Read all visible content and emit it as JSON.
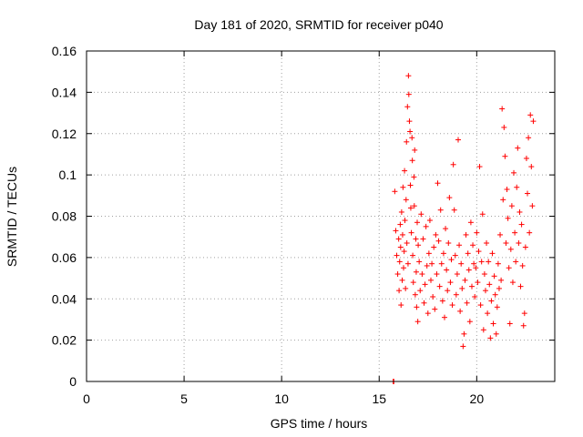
{
  "colors": {
    "series": "#ff0000",
    "axis": "#000000",
    "grid": "#a0a0a0",
    "background": "#ffffff"
  },
  "chart_data": {
    "type": "scatter",
    "title": "Day 181 of 2020, SRMTID for receiver p040",
    "xlabel": "GPS time / hours",
    "ylabel": "SRMTID / TECUs",
    "xlim": [
      0,
      24
    ],
    "ylim": [
      0,
      0.16
    ],
    "x_ticks": [
      0,
      5,
      10,
      15,
      20
    ],
    "x_tick_labels": [
      "0",
      "5",
      "10",
      "15",
      "20"
    ],
    "y_ticks": [
      0,
      0.02,
      0.04,
      0.06,
      0.08,
      0.1,
      0.12,
      0.14,
      0.16
    ],
    "y_tick_labels": [
      "0",
      "0.02",
      "0.04",
      "0.06",
      "0.08",
      "0.1",
      "0.12",
      "0.14",
      "0.16"
    ],
    "grid": true,
    "marker": "plus",
    "series": [
      {
        "name": "SRMTID",
        "points": [
          [
            15.72,
            0.0
          ],
          [
            15.75,
            0.0
          ],
          [
            15.8,
            0.092
          ],
          [
            15.85,
            0.073
          ],
          [
            15.9,
            0.061
          ],
          [
            15.95,
            0.052
          ],
          [
            16.0,
            0.069
          ],
          [
            16.02,
            0.044
          ],
          [
            16.05,
            0.058
          ],
          [
            16.08,
            0.076
          ],
          [
            16.1,
            0.065
          ],
          [
            16.12,
            0.037
          ],
          [
            16.15,
            0.082
          ],
          [
            16.18,
            0.049
          ],
          [
            16.2,
            0.071
          ],
          [
            16.22,
            0.094
          ],
          [
            16.25,
            0.055
          ],
          [
            16.28,
            0.063
          ],
          [
            16.3,
            0.102
          ],
          [
            16.32,
            0.078
          ],
          [
            16.35,
            0.045
          ],
          [
            16.38,
            0.088
          ],
          [
            16.4,
            0.116
          ],
          [
            16.42,
            0.067
          ],
          [
            16.45,
            0.133
          ],
          [
            16.48,
            0.057
          ],
          [
            16.5,
            0.148
          ],
          [
            16.52,
            0.139
          ],
          [
            16.55,
            0.126
          ],
          [
            16.58,
            0.121
          ],
          [
            16.6,
            0.095
          ],
          [
            16.62,
            0.084
          ],
          [
            16.65,
            0.072
          ],
          [
            16.68,
            0.118
          ],
          [
            16.7,
            0.107
          ],
          [
            16.72,
            0.061
          ],
          [
            16.75,
            0.048
          ],
          [
            16.78,
            0.099
          ],
          [
            16.8,
            0.085
          ],
          [
            16.82,
            0.112
          ],
          [
            16.85,
            0.042
          ],
          [
            16.88,
            0.069
          ],
          [
            16.9,
            0.053
          ],
          [
            16.92,
            0.036
          ],
          [
            16.95,
            0.077
          ],
          [
            16.98,
            0.029
          ],
          [
            17.0,
            0.066
          ],
          [
            17.05,
            0.058
          ],
          [
            17.1,
            0.044
          ],
          [
            17.15,
            0.081
          ],
          [
            17.2,
            0.052
          ],
          [
            17.25,
            0.069
          ],
          [
            17.3,
            0.038
          ],
          [
            17.35,
            0.047
          ],
          [
            17.4,
            0.075
          ],
          [
            17.45,
            0.056
          ],
          [
            17.5,
            0.033
          ],
          [
            17.55,
            0.062
          ],
          [
            17.6,
            0.078
          ],
          [
            17.65,
            0.049
          ],
          [
            17.7,
            0.057
          ],
          [
            17.75,
            0.041
          ],
          [
            17.8,
            0.065
          ],
          [
            17.85,
            0.035
          ],
          [
            17.9,
            0.071
          ],
          [
            17.95,
            0.052
          ],
          [
            18.0,
            0.096
          ],
          [
            18.05,
            0.068
          ],
          [
            18.1,
            0.046
          ],
          [
            18.15,
            0.083
          ],
          [
            18.2,
            0.057
          ],
          [
            18.25,
            0.039
          ],
          [
            18.3,
            0.062
          ],
          [
            18.35,
            0.031
          ],
          [
            18.4,
            0.074
          ],
          [
            18.45,
            0.054
          ],
          [
            18.5,
            0.044
          ],
          [
            18.55,
            0.067
          ],
          [
            18.6,
            0.089
          ],
          [
            18.65,
            0.048
          ],
          [
            18.7,
            0.059
          ],
          [
            18.75,
            0.037
          ],
          [
            18.8,
            0.105
          ],
          [
            18.85,
            0.083
          ],
          [
            18.9,
            0.061
          ],
          [
            18.95,
            0.042
          ],
          [
            19.0,
            0.052
          ],
          [
            19.05,
            0.117
          ],
          [
            19.1,
            0.066
          ],
          [
            19.15,
            0.034
          ],
          [
            19.2,
            0.057
          ],
          [
            19.25,
            0.045
          ],
          [
            19.3,
            0.017
          ],
          [
            19.35,
            0.023
          ],
          [
            19.4,
            0.049
          ],
          [
            19.45,
            0.071
          ],
          [
            19.5,
            0.038
          ],
          [
            19.55,
            0.062
          ],
          [
            19.6,
            0.054
          ],
          [
            19.65,
            0.029
          ],
          [
            19.7,
            0.077
          ],
          [
            19.75,
            0.046
          ],
          [
            19.8,
            0.066
          ],
          [
            19.85,
            0.057
          ],
          [
            19.9,
            0.041
          ],
          [
            19.95,
            0.055
          ],
          [
            20.0,
            0.072
          ],
          [
            20.05,
            0.048
          ],
          [
            20.1,
            0.063
          ],
          [
            20.15,
            0.104
          ],
          [
            20.2,
            0.037
          ],
          [
            20.25,
            0.058
          ],
          [
            20.3,
            0.081
          ],
          [
            20.35,
            0.025
          ],
          [
            20.4,
            0.052
          ],
          [
            20.45,
            0.044
          ],
          [
            20.5,
            0.067
          ],
          [
            20.55,
            0.033
          ],
          [
            20.6,
            0.058
          ],
          [
            20.65,
            0.047
          ],
          [
            20.7,
            0.021
          ],
          [
            20.75,
            0.039
          ],
          [
            20.8,
            0.062
          ],
          [
            20.85,
            0.028
          ],
          [
            20.9,
            0.051
          ],
          [
            20.95,
            0.042
          ],
          [
            21.0,
            0.023
          ],
          [
            21.05,
            0.036
          ],
          [
            21.1,
            0.057
          ],
          [
            21.15,
            0.045
          ],
          [
            21.2,
            0.071
          ],
          [
            21.25,
            0.049
          ],
          [
            21.3,
            0.132
          ],
          [
            21.35,
            0.088
          ],
          [
            21.4,
            0.123
          ],
          [
            21.45,
            0.109
          ],
          [
            21.5,
            0.067
          ],
          [
            21.55,
            0.093
          ],
          [
            21.6,
            0.079
          ],
          [
            21.65,
            0.055
          ],
          [
            21.7,
            0.028
          ],
          [
            21.75,
            0.064
          ],
          [
            21.8,
            0.085
          ],
          [
            21.85,
            0.048
          ],
          [
            21.9,
            0.101
          ],
          [
            21.95,
            0.072
          ],
          [
            22.0,
            0.058
          ],
          [
            22.05,
            0.094
          ],
          [
            22.1,
            0.113
          ],
          [
            22.15,
            0.067
          ],
          [
            22.2,
            0.082
          ],
          [
            22.25,
            0.046
          ],
          [
            22.3,
            0.076
          ],
          [
            22.35,
            0.056
          ],
          [
            22.4,
            0.027
          ],
          [
            22.45,
            0.033
          ],
          [
            22.5,
            0.065
          ],
          [
            22.55,
            0.108
          ],
          [
            22.6,
            0.091
          ],
          [
            22.65,
            0.118
          ],
          [
            22.7,
            0.072
          ],
          [
            22.75,
            0.129
          ],
          [
            22.8,
            0.104
          ],
          [
            22.85,
            0.085
          ],
          [
            22.9,
            0.126
          ]
        ]
      }
    ]
  }
}
